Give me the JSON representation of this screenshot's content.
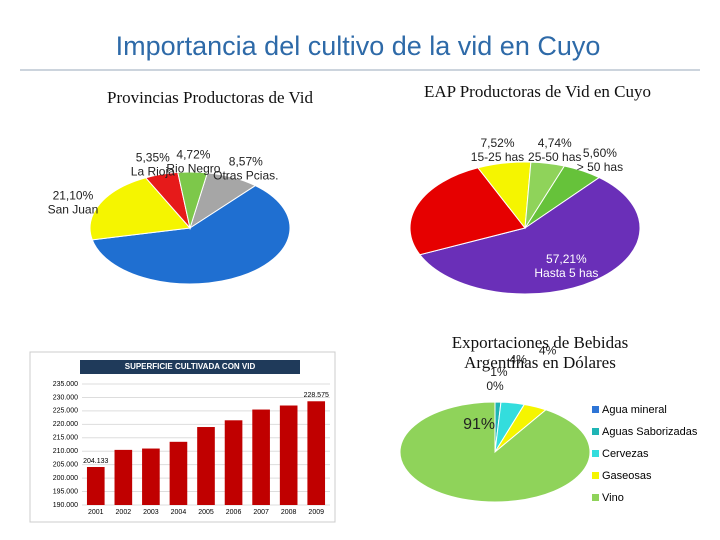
{
  "title": "Importancia del cultivo de la vid en Cuyo",
  "chart_data": [
    {
      "type": "pie",
      "title": "Provincias Productoras de Vid",
      "categories": [
        "Otras Pcias.",
        null,
        "San Juan",
        "La Rioja",
        "Rio Negro"
      ],
      "values": [
        8.57,
        60.26,
        21.1,
        5.35,
        4.72
      ],
      "value_labels": [
        "8,57%",
        null,
        "21,10%",
        "5,35%",
        "4,72%"
      ],
      "colors": [
        "#a6a6a6",
        "#1f6fd1",
        "#f5f500",
        "#e61a1a",
        "#7dc84a"
      ]
    },
    {
      "type": "pie",
      "title": "EAP Productoras de Vid en Cuyo",
      "categories": [
        "> 50 has",
        "Hasta 5 has",
        null,
        "15-25 has",
        "25-50 has"
      ],
      "values": [
        5.6,
        57.21,
        24.93,
        7.52,
        4.74
      ],
      "value_labels": [
        "5,60%",
        "57,21%",
        null,
        "7,52%",
        "4,74%"
      ],
      "colors": [
        "#66c23a",
        "#6a2fb8",
        "#e60000",
        "#f5f500",
        "#8fd35a"
      ]
    },
    {
      "type": "bar",
      "title": "SUPERFICIE CULTIVADA CON VID",
      "categories": [
        "2001",
        "2002",
        "2003",
        "2004",
        "2005",
        "2006",
        "2007",
        "2008",
        "2009"
      ],
      "values": [
        204133,
        210500,
        211000,
        213500,
        219000,
        221500,
        225500,
        227000,
        228575
      ],
      "value_labels": [
        "204.133",
        null,
        null,
        null,
        null,
        null,
        null,
        null,
        "228.575"
      ],
      "color": "#c00000",
      "ylim": [
        190000,
        235000
      ],
      "yticks": [
        {
          "value": 190000,
          "label": "190.000"
        },
        {
          "value": 195000,
          "label": "195.000"
        },
        {
          "value": 200000,
          "label": "200.000"
        },
        {
          "value": 205000,
          "label": "205.000"
        },
        {
          "value": 210000,
          "label": "210.000"
        },
        {
          "value": 215000,
          "label": "215.000"
        },
        {
          "value": 220000,
          "label": "220.000"
        },
        {
          "value": 225000,
          "label": "225.000"
        },
        {
          "value": 230000,
          "label": "230.000"
        },
        {
          "value": 235000,
          "label": "235.000"
        }
      ]
    },
    {
      "type": "pie",
      "title": "Exportaciones de Bebidas Argentinas en Dólares",
      "categories": [
        "Agua mineral",
        "Aguas Saborizadas",
        "Cervezas",
        "Gaseosas",
        "Vino"
      ],
      "values": [
        0,
        1,
        4,
        4,
        91
      ],
      "value_labels": [
        "0%",
        "1%",
        "4%",
        "4%",
        "91%"
      ],
      "colors": [
        "#2e75d6",
        "#1fb5b5",
        "#33dddd",
        "#f5f500",
        "#8fd35a"
      ],
      "legend": "right"
    }
  ]
}
